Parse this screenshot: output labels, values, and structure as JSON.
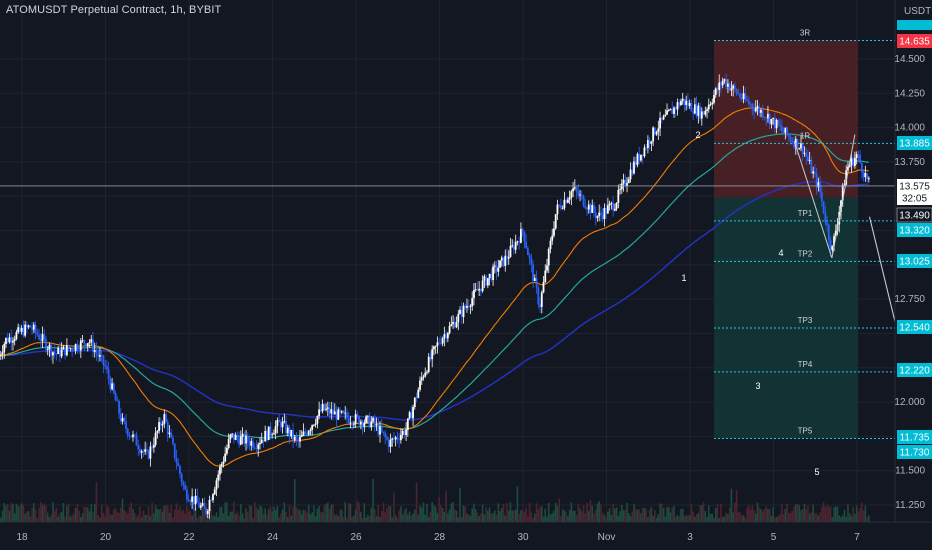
{
  "title": "ATOMUSDT Perpetual Contract, 1h, BYBIT",
  "currency": "USDT",
  "colors": {
    "background": "#131722",
    "grid": "#1f2330",
    "candle_up": "#ffffff",
    "candle_down": "#2962ff",
    "ema_fast": "#f57c00",
    "ema_mid": "#26a69a",
    "ema_slow": "#2432c8",
    "stop_zone": "#4a2126",
    "target_zone": "#123436",
    "level_line": "#26c6da",
    "path_line": "#c7cad1",
    "price_tag_red": "#f23645",
    "price_tag_teal": "#00bcd4",
    "price_tag_dark": "#131722"
  },
  "x_axis": {
    "ticks": [
      "18",
      "20",
      "22",
      "24",
      "26",
      "28",
      "30",
      "Nov",
      "3",
      "5",
      "7"
    ]
  },
  "price_axis": {
    "ticks": [
      "14.500",
      "14.250",
      "14.000",
      "13.750",
      "12.750",
      "12.000",
      "11.500",
      "11.250"
    ]
  },
  "price_tags": [
    {
      "text": "14.635",
      "value": 14.635,
      "style": "red"
    },
    {
      "text": "13.885",
      "value": 13.885,
      "style": "teal"
    },
    {
      "text": "13.575",
      "value": 13.575,
      "style": "current"
    },
    {
      "text": "32:05",
      "value": 13.535,
      "style": "countdown"
    },
    {
      "text": "13.490",
      "value": 13.49,
      "style": "dark"
    },
    {
      "text": "13.320",
      "value": 13.32,
      "style": "teal"
    },
    {
      "text": "13.025",
      "value": 13.025,
      "style": "teal"
    },
    {
      "text": "12.540",
      "value": 12.54,
      "style": "teal"
    },
    {
      "text": "12.220",
      "value": 12.22,
      "style": "teal"
    },
    {
      "text": "11.735",
      "value": 11.735,
      "style": "teal"
    },
    {
      "text": "11.730",
      "value": 11.73,
      "style": "teal"
    }
  ],
  "chart_data": {
    "type": "candlestick",
    "title": "ATOMUSDT Perpetual Contract, 1h, BYBIT",
    "current_price": 13.575,
    "close_countdown": "32:05",
    "series_approx_hourly_closes": [
      {
        "date": "Oct 17",
        "close": 11.9
      },
      {
        "date": "Oct 18",
        "close": 12.55
      },
      {
        "date": "Oct 19",
        "close": 12.45
      },
      {
        "date": "Oct 20",
        "close": 11.8
      },
      {
        "date": "Oct 21",
        "close": 11.25
      },
      {
        "date": "Oct 22",
        "close": 11.75
      },
      {
        "date": "Oct 23",
        "close": 11.85
      },
      {
        "date": "Oct 24",
        "close": 11.95
      },
      {
        "date": "Oct 25",
        "close": 11.7
      },
      {
        "date": "Oct 26",
        "close": 12.4
      },
      {
        "date": "Oct 27",
        "close": 12.8
      },
      {
        "date": "Oct 28",
        "close": 13.0
      },
      {
        "date": "Oct 29",
        "close": 13.55
      },
      {
        "date": "Oct 30",
        "close": 13.65
      },
      {
        "date": "Oct 31",
        "close": 14.2
      },
      {
        "date": "Nov 1",
        "close": 14.25
      },
      {
        "date": "Nov 2",
        "close": 13.8
      },
      {
        "date": "Nov 3",
        "close": 13.575
      }
    ],
    "trade_levels": [
      {
        "label": "3R",
        "price": 14.635
      },
      {
        "label": "1R",
        "price": 13.885
      },
      {
        "label": "TP1",
        "price": 13.32
      },
      {
        "label": "TP2",
        "price": 13.025
      },
      {
        "label": "TP3",
        "price": 12.54
      },
      {
        "label": "TP4",
        "price": 12.22
      },
      {
        "label": "TP5",
        "price": 11.735
      }
    ],
    "entry_price": 13.49,
    "wave_labels": [
      {
        "label": "1",
        "date": "Nov 2",
        "price": 13.05
      },
      {
        "label": "2",
        "date": "Nov 3",
        "price": 13.85
      },
      {
        "label": "3",
        "date": "Nov 4",
        "price": 12.2
      },
      {
        "label": "4",
        "date": "Nov 5",
        "price": 13.0
      },
      {
        "label": "5",
        "date": "Nov 5",
        "price": 11.55
      }
    ],
    "y_range": [
      11.18,
      14.78
    ],
    "grid": true
  }
}
